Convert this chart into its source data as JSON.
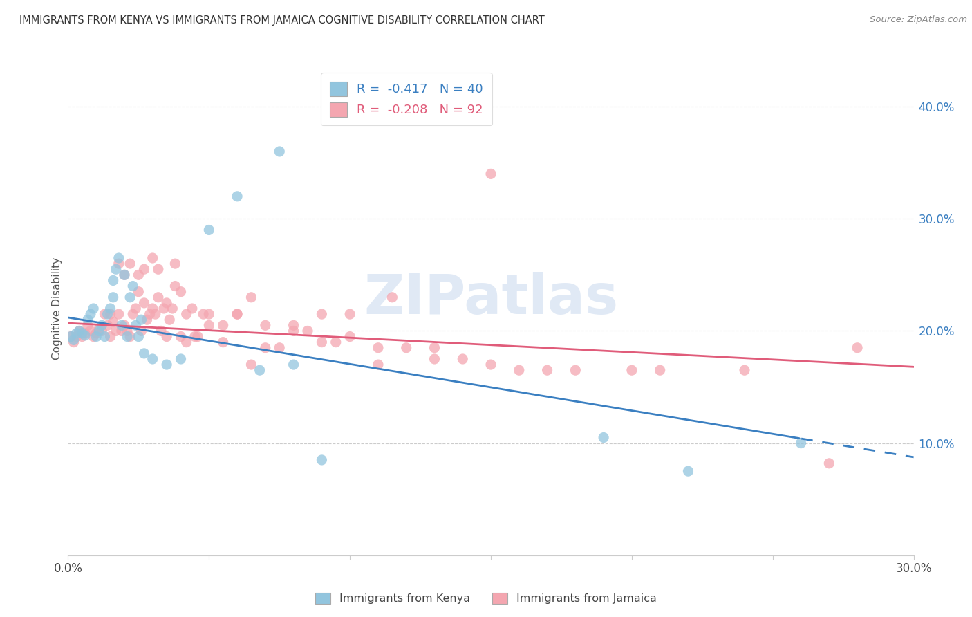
{
  "title": "IMMIGRANTS FROM KENYA VS IMMIGRANTS FROM JAMAICA COGNITIVE DISABILITY CORRELATION CHART",
  "source": "Source: ZipAtlas.com",
  "ylabel": "Cognitive Disability",
  "xlim": [
    0.0,
    0.3
  ],
  "ylim": [
    0.0,
    0.44
  ],
  "kenya_color": "#92c5de",
  "jamaica_color": "#f4a6b0",
  "kenya_line_color": "#3a7fc1",
  "jamaica_line_color": "#e05c7a",
  "kenya_R": -0.417,
  "kenya_N": 40,
  "jamaica_R": -0.208,
  "jamaica_N": 92,
  "watermark_text": "ZIPatlas",
  "legend_label_kenya": "Immigrants from Kenya",
  "legend_label_jamaica": "Immigrants from Jamaica",
  "legend_text_color": "#3a7fc1",
  "kenya_line_intercept": 0.212,
  "kenya_line_slope": -0.415,
  "kenya_line_solid_end": 0.26,
  "jamaica_line_intercept": 0.207,
  "jamaica_line_slope": -0.13,
  "jamaica_line_solid_end": 0.3,
  "kenya_points_x": [
    0.001,
    0.002,
    0.003,
    0.004,
    0.005,
    0.006,
    0.007,
    0.008,
    0.009,
    0.01,
    0.011,
    0.012,
    0.013,
    0.014,
    0.015,
    0.016,
    0.016,
    0.017,
    0.018,
    0.019,
    0.02,
    0.021,
    0.022,
    0.023,
    0.024,
    0.025,
    0.026,
    0.027,
    0.03,
    0.035,
    0.04,
    0.05,
    0.06,
    0.068,
    0.075,
    0.08,
    0.09,
    0.19,
    0.22,
    0.26
  ],
  "kenya_points_y": [
    0.195,
    0.192,
    0.198,
    0.2,
    0.198,
    0.196,
    0.21,
    0.215,
    0.22,
    0.195,
    0.2,
    0.205,
    0.195,
    0.215,
    0.22,
    0.23,
    0.245,
    0.255,
    0.265,
    0.205,
    0.25,
    0.195,
    0.23,
    0.24,
    0.205,
    0.195,
    0.21,
    0.18,
    0.175,
    0.17,
    0.175,
    0.29,
    0.32,
    0.165,
    0.36,
    0.17,
    0.085,
    0.105,
    0.075,
    0.1
  ],
  "jamaica_points_x": [
    0.001,
    0.002,
    0.003,
    0.004,
    0.005,
    0.006,
    0.007,
    0.008,
    0.009,
    0.01,
    0.011,
    0.012,
    0.013,
    0.014,
    0.015,
    0.016,
    0.017,
    0.018,
    0.019,
    0.02,
    0.021,
    0.022,
    0.023,
    0.024,
    0.025,
    0.026,
    0.027,
    0.028,
    0.029,
    0.03,
    0.031,
    0.032,
    0.033,
    0.034,
    0.035,
    0.036,
    0.037,
    0.038,
    0.04,
    0.042,
    0.044,
    0.046,
    0.048,
    0.05,
    0.055,
    0.06,
    0.065,
    0.07,
    0.075,
    0.08,
    0.085,
    0.09,
    0.095,
    0.1,
    0.11,
    0.115,
    0.12,
    0.13,
    0.14,
    0.15,
    0.015,
    0.018,
    0.02,
    0.022,
    0.025,
    0.027,
    0.03,
    0.032,
    0.035,
    0.038,
    0.04,
    0.042,
    0.045,
    0.05,
    0.055,
    0.06,
    0.065,
    0.07,
    0.08,
    0.09,
    0.1,
    0.11,
    0.13,
    0.15,
    0.16,
    0.17,
    0.18,
    0.21,
    0.24,
    0.27,
    0.2,
    0.28
  ],
  "jamaica_points_y": [
    0.195,
    0.19,
    0.195,
    0.2,
    0.195,
    0.198,
    0.205,
    0.2,
    0.195,
    0.198,
    0.202,
    0.2,
    0.215,
    0.205,
    0.195,
    0.208,
    0.2,
    0.215,
    0.2,
    0.205,
    0.2,
    0.195,
    0.215,
    0.22,
    0.235,
    0.2,
    0.225,
    0.21,
    0.215,
    0.22,
    0.215,
    0.23,
    0.2,
    0.22,
    0.225,
    0.21,
    0.22,
    0.24,
    0.195,
    0.215,
    0.22,
    0.195,
    0.215,
    0.215,
    0.205,
    0.215,
    0.23,
    0.205,
    0.185,
    0.205,
    0.2,
    0.215,
    0.19,
    0.215,
    0.185,
    0.23,
    0.185,
    0.185,
    0.175,
    0.17,
    0.215,
    0.26,
    0.25,
    0.26,
    0.25,
    0.255,
    0.265,
    0.255,
    0.195,
    0.26,
    0.235,
    0.19,
    0.195,
    0.205,
    0.19,
    0.215,
    0.17,
    0.185,
    0.2,
    0.19,
    0.195,
    0.17,
    0.175,
    0.34,
    0.165,
    0.165,
    0.165,
    0.165,
    0.165,
    0.082,
    0.165,
    0.185
  ]
}
